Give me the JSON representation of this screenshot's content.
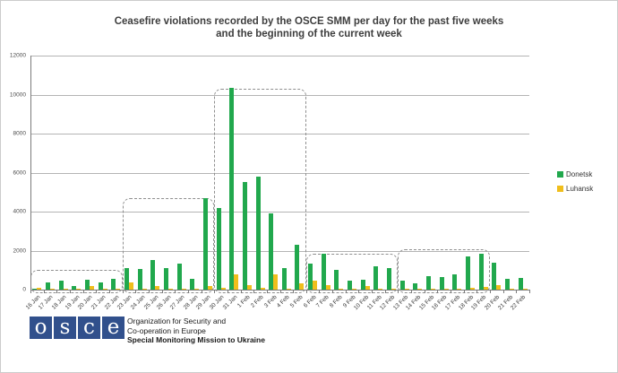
{
  "title": {
    "line1": "Ceasefire violations recorded by the OSCE SMM per day for the past five weeks",
    "line2": "and the beginning of the current week"
  },
  "chart_data": {
    "type": "bar",
    "categories": [
      "16 Jan",
      "17 Jan",
      "18 Jan",
      "19 Jan",
      "20 Jan",
      "21 Jan",
      "22 Jan",
      "23 Jan",
      "24 Jan",
      "25 Jan",
      "26 Jan",
      "27 Jan",
      "28 Jan",
      "29 Jan",
      "30 Jan",
      "31 Jan",
      "1 Feb",
      "2 Feb",
      "3 Feb",
      "4 Feb",
      "5 Feb",
      "6 Feb",
      "7 Feb",
      "8 Feb",
      "9 Feb",
      "10 Feb",
      "11 Feb",
      "12 Feb",
      "13 Feb",
      "14 Feb",
      "15 Feb",
      "16 Feb",
      "17 Feb",
      "18 Feb",
      "19 Feb",
      "20 Feb",
      "21 Feb",
      "22 Feb"
    ],
    "series": [
      {
        "name": "Donetsk",
        "color": "#21a84d",
        "values": [
          60,
          370,
          450,
          200,
          500,
          350,
          550,
          1100,
          1050,
          1500,
          1100,
          1350,
          550,
          4700,
          4200,
          10350,
          5500,
          5800,
          3900,
          1100,
          2300,
          1350,
          1850,
          1000,
          450,
          500,
          1200,
          1100,
          450,
          330,
          670,
          640,
          760,
          1700,
          1850,
          1400,
          550,
          600
        ]
      },
      {
        "name": "Luhansk",
        "color": "#f0be1c",
        "values": [
          80,
          30,
          30,
          40,
          170,
          40,
          30,
          350,
          40,
          200,
          40,
          40,
          40,
          200,
          80,
          800,
          250,
          100,
          800,
          40,
          300,
          450,
          250,
          60,
          30,
          180,
          30,
          40,
          30,
          25,
          50,
          40,
          40,
          110,
          140,
          250,
          40,
          50
        ]
      }
    ],
    "title": "Ceasefire violations recorded by the OSCE SMM per day for the past five weeks and the beginning of the current week",
    "xlabel": "",
    "ylabel": "",
    "ylim": [
      0,
      12000
    ],
    "yticks": [
      0,
      2000,
      4000,
      6000,
      8000,
      10000,
      12000
    ],
    "grid": true,
    "legend_position": "right",
    "annotations": {
      "week_boxes": [
        {
          "start_category": "16 Jan",
          "end_category": "22 Jan",
          "top_value": 1020
        },
        {
          "start_category": "23 Jan",
          "end_category": "29 Jan",
          "top_value": 4680
        },
        {
          "start_category": "30 Jan",
          "end_category": "5 Feb",
          "top_value": 10280
        },
        {
          "start_category": "6 Feb",
          "end_category": "12 Feb",
          "top_value": 1850
        },
        {
          "start_category": "13 Feb",
          "end_category": "19 Feb",
          "top_value": 2060
        }
      ]
    }
  },
  "legend": {
    "items": [
      {
        "label": "Donetsk",
        "color": "#21a84d"
      },
      {
        "label": "Luhansk",
        "color": "#f0be1c"
      }
    ]
  },
  "footer": {
    "logo_letters": [
      "o",
      "s",
      "c",
      "e"
    ],
    "logo_color": "#31508c",
    "org_line1": "Organization for Security and",
    "org_line2": "Co-operation in Europe",
    "mission": "Special Monitoring Mission to Ukraine"
  }
}
